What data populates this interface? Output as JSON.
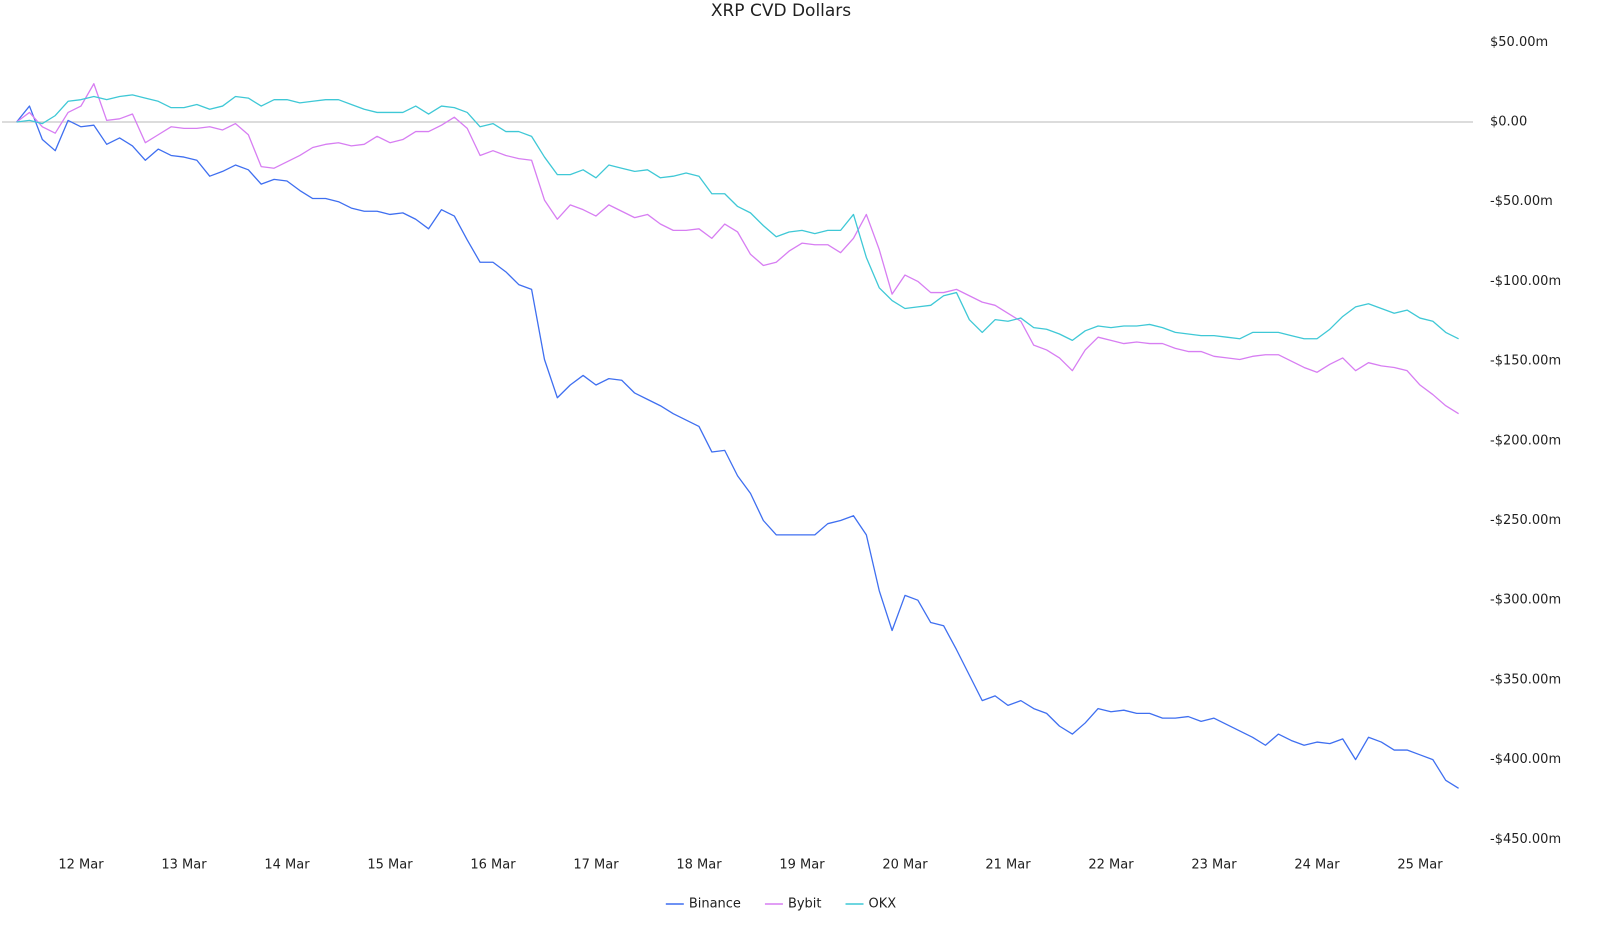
{
  "chart_data": {
    "type": "line",
    "title": "XRP CVD Dollars",
    "categories": [
      null,
      null,
      null,
      null,
      null,
      "12 Mar",
      null,
      null,
      null,
      null,
      null,
      null,
      null,
      "13 Mar",
      null,
      null,
      null,
      null,
      null,
      null,
      null,
      "14 Mar",
      null,
      null,
      null,
      null,
      null,
      null,
      null,
      "15 Mar",
      null,
      null,
      null,
      null,
      null,
      null,
      null,
      "16 Mar",
      null,
      null,
      null,
      null,
      null,
      null,
      null,
      "17 Mar",
      null,
      null,
      null,
      null,
      null,
      null,
      null,
      "18 Mar",
      null,
      null,
      null,
      null,
      null,
      null,
      null,
      "19 Mar",
      null,
      null,
      null,
      null,
      null,
      null,
      null,
      "20 Mar",
      null,
      null,
      null,
      null,
      null,
      null,
      null,
      "21 Mar",
      null,
      null,
      null,
      null,
      null,
      null,
      null,
      "22 Mar",
      null,
      null,
      null,
      null,
      null,
      null,
      null,
      "23 Mar",
      null,
      null,
      null,
      null,
      null,
      null,
      null,
      "24 Mar",
      null,
      null,
      null,
      null,
      null,
      null,
      null,
      "25 Mar",
      null,
      null,
      null
    ],
    "series": [
      {
        "name": "Binance",
        "color": "#3f6ff0",
        "values": [
          0,
          10,
          -11,
          -18,
          1,
          -3,
          -2,
          -14,
          -10,
          -15,
          -24,
          -17,
          -21,
          -22,
          -24,
          -34,
          -31,
          -27,
          -30,
          -39,
          -36,
          -37,
          -43,
          -48,
          -48,
          -50,
          -54,
          -56,
          -56,
          -58,
          -57,
          -61,
          -67,
          -55,
          -59,
          -74,
          -88,
          -88,
          -94,
          -102,
          -105,
          -149,
          -173,
          -165,
          -159,
          -165,
          -161,
          -162,
          -170,
          -174,
          -178,
          -183,
          -187,
          -191,
          -207,
          -206,
          -222,
          -233,
          -250,
          -259,
          -259,
          -259,
          -259,
          -252,
          -250,
          -247,
          -259,
          -294,
          -319,
          -297,
          -300,
          -314,
          -316,
          -331,
          -347,
          -363,
          -360,
          -366,
          -363,
          -368,
          -371,
          -379,
          -384,
          -377,
          -368,
          -370,
          -369,
          -371,
          -371,
          -374,
          -374,
          -373,
          -376,
          -374,
          -378,
          -382,
          -386,
          -391,
          -384,
          -388,
          -391,
          -389,
          -390,
          -387,
          -400,
          -386,
          -389,
          -394,
          -394,
          -397,
          -400,
          -413,
          -418
        ]
      },
      {
        "name": "Bybit",
        "color": "#d77ef2",
        "values": [
          0,
          6,
          -3,
          -7,
          6,
          10,
          24,
          1,
          2,
          5,
          -13,
          -8,
          -3,
          -4,
          -4,
          -3,
          -5,
          -1,
          -8,
          -28,
          -29,
          -25,
          -21,
          -16,
          -14,
          -13,
          -15,
          -14,
          -9,
          -13,
          -11,
          -6,
          -6,
          -2,
          3,
          -4,
          -21,
          -18,
          -21,
          -23,
          -24,
          -49,
          -61,
          -52,
          -55,
          -59,
          -52,
          -56,
          -60,
          -58,
          -64,
          -68,
          -68,
          -67,
          -73,
          -64,
          -69,
          -83,
          -90,
          -88,
          -81,
          -76,
          -77,
          -77,
          -82,
          -73,
          -58,
          -80,
          -108,
          -96,
          -100,
          -107,
          -107,
          -105,
          -109,
          -113,
          -115,
          -120,
          -125,
          -140,
          -143,
          -148,
          -156,
          -143,
          -135,
          -137,
          -139,
          -138,
          -139,
          -139,
          -142,
          -144,
          -144,
          -147,
          -148,
          -149,
          -147,
          -146,
          -146,
          -150,
          -154,
          -157,
          -152,
          -148,
          -156,
          -151,
          -153,
          -154,
          -156,
          -165,
          -171,
          -178,
          -183
        ]
      },
      {
        "name": "OKX",
        "color": "#3fc8d6",
        "values": [
          0,
          1,
          -1,
          4,
          13,
          14,
          16,
          14,
          16,
          17,
          15,
          13,
          9,
          9,
          11,
          8,
          10,
          16,
          15,
          10,
          14,
          14,
          12,
          13,
          14,
          14,
          11,
          8,
          6,
          6,
          6,
          10,
          5,
          10,
          9,
          6,
          -3,
          -1,
          -6,
          -6,
          -9,
          -22,
          -33,
          -33,
          -30,
          -35,
          -27,
          -29,
          -31,
          -30,
          -35,
          -34,
          -32,
          -34,
          -45,
          -45,
          -53,
          -57,
          -65,
          -72,
          -69,
          -68,
          -70,
          -68,
          -68,
          -58,
          -85,
          -104,
          -112,
          -117,
          -116,
          -115,
          -109,
          -107,
          -124,
          -132,
          -124,
          -125,
          -123,
          -129,
          -130,
          -133,
          -137,
          -131,
          -128,
          -129,
          -128,
          -128,
          -127,
          -129,
          -132,
          -133,
          -134,
          -134,
          -135,
          -136,
          -132,
          -132,
          -132,
          -134,
          -136,
          -136,
          -130,
          -122,
          -116,
          -114,
          -117,
          -120,
          -118,
          -123,
          -125,
          -132,
          -136
        ]
      }
    ],
    "ylim": [
      -450,
      50
    ],
    "yticks": [
      {
        "value": 50,
        "label": "$50.00m"
      },
      {
        "value": 0,
        "label": "$0.00"
      },
      {
        "value": -50,
        "label": "-$50.00m"
      },
      {
        "value": -100,
        "label": "-$100.00m"
      },
      {
        "value": -150,
        "label": "-$150.00m"
      },
      {
        "value": -200,
        "label": "-$200.00m"
      },
      {
        "value": -250,
        "label": "-$250.00m"
      },
      {
        "value": -300,
        "label": "-$300.00m"
      },
      {
        "value": -350,
        "label": "-$350.00m"
      },
      {
        "value": -400,
        "label": "-$400.00m"
      },
      {
        "value": -450,
        "label": "-$450.00m"
      }
    ],
    "y_axis_side": "right",
    "grid": false,
    "zero_line": true,
    "legend": "bottom"
  }
}
